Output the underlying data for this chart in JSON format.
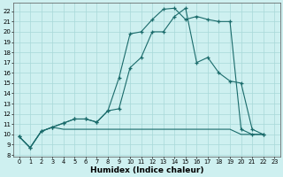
{
  "xlabel": "Humidex (Indice chaleur)",
  "bg_color": "#cef0f0",
  "grid_color": "#a8d8d8",
  "line_color": "#1a6b6b",
  "xlim_min": -0.5,
  "xlim_max": 23.5,
  "ylim_min": 7.8,
  "ylim_max": 22.8,
  "xtick_vals": [
    0,
    1,
    2,
    3,
    4,
    5,
    6,
    7,
    8,
    9,
    10,
    11,
    12,
    13,
    14,
    15,
    16,
    17,
    18,
    19,
    20,
    21,
    22,
    23
  ],
  "ytick_vals": [
    8,
    9,
    10,
    11,
    12,
    13,
    14,
    15,
    16,
    17,
    18,
    19,
    20,
    21,
    22
  ],
  "line1_x": [
    0,
    1,
    2,
    3,
    4,
    5,
    6,
    7,
    8,
    9,
    10,
    11,
    12,
    13,
    14,
    15,
    16,
    17,
    18,
    19,
    20,
    21,
    22
  ],
  "line1_y": [
    9.8,
    8.7,
    10.3,
    10.7,
    11.1,
    11.5,
    11.5,
    11.2,
    12.3,
    15.5,
    19.8,
    20.0,
    21.2,
    22.2,
    22.3,
    21.2,
    21.5,
    21.2,
    21.0,
    21.0,
    10.5,
    10.0,
    10.0
  ],
  "line2_x": [
    0,
    1,
    2,
    3,
    4,
    5,
    6,
    7,
    8,
    9,
    10,
    11,
    12,
    13,
    14,
    15,
    16,
    17,
    18,
    19,
    20,
    21,
    22
  ],
  "line2_y": [
    9.8,
    8.7,
    10.3,
    10.7,
    11.1,
    11.5,
    11.5,
    11.2,
    12.3,
    12.5,
    16.5,
    17.5,
    20.0,
    20.0,
    21.5,
    22.3,
    17.0,
    17.5,
    16.0,
    15.2,
    15.0,
    10.5,
    10.0
  ],
  "line3_x": [
    0,
    1,
    2,
    3,
    4,
    5,
    6,
    7,
    8,
    9,
    10,
    11,
    12,
    13,
    14,
    15,
    16,
    17,
    18,
    19,
    20,
    21,
    22
  ],
  "line3_y": [
    9.8,
    8.7,
    10.3,
    10.7,
    10.5,
    10.5,
    10.5,
    10.5,
    10.5,
    10.5,
    10.5,
    10.5,
    10.5,
    10.5,
    10.5,
    10.5,
    10.5,
    10.5,
    10.5,
    10.5,
    10.0,
    10.0,
    10.0
  ]
}
